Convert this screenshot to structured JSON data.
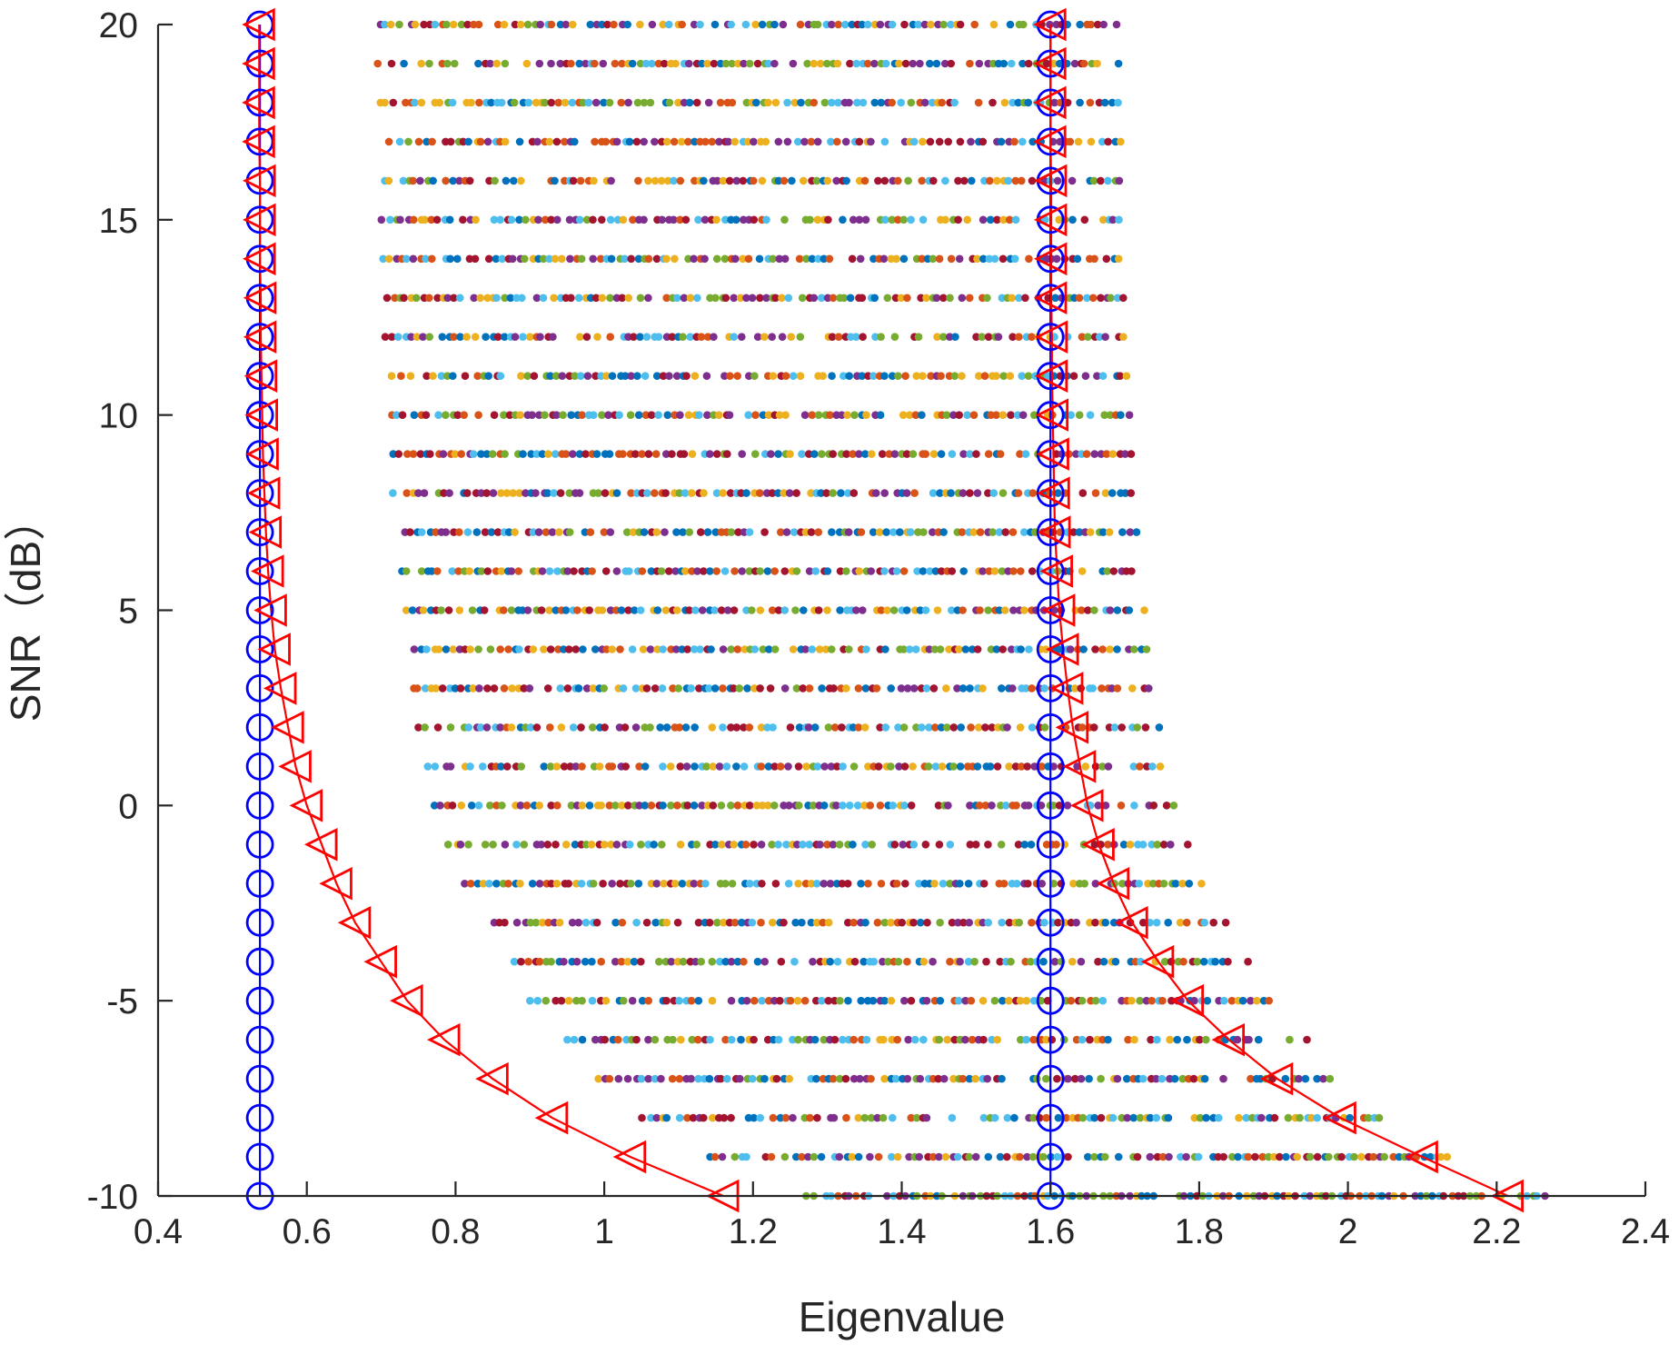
{
  "chart_data": {
    "type": "scatter",
    "title": "",
    "xlabel": "Eigenvalue",
    "ylabel": "SNR（dB）",
    "xlim": [
      0.4,
      2.4
    ],
    "ylim": [
      -10,
      20
    ],
    "x_ticks": [
      "0.4",
      "0.6",
      "0.8",
      "1",
      "1.2",
      "1.4",
      "1.6",
      "1.8",
      "2",
      "2.2",
      "2.4"
    ],
    "y_ticks": [
      "-10",
      "-5",
      "0",
      "5",
      "10",
      "15",
      "20"
    ],
    "grid": false,
    "legend": "none",
    "snr": [
      -10,
      -9,
      -8,
      -7,
      -6,
      -5,
      -4,
      -3,
      -2,
      -1,
      0,
      1,
      2,
      3,
      4,
      5,
      6,
      7,
      8,
      9,
      10,
      11,
      12,
      13,
      14,
      15,
      16,
      17,
      18,
      19,
      20
    ],
    "series": [
      {
        "label_marker": "circle",
        "color": "#0000ff",
        "points": [
          {
            "y": -10,
            "x": [
              0.537,
              1.6
            ]
          },
          {
            "y": -9,
            "x": [
              0.537,
              1.6
            ]
          },
          {
            "y": -8,
            "x": [
              0.537,
              1.6
            ]
          },
          {
            "y": -7,
            "x": [
              0.537,
              1.6
            ]
          },
          {
            "y": -6,
            "x": [
              0.537,
              1.6
            ]
          },
          {
            "y": -5,
            "x": [
              0.537,
              1.6
            ]
          },
          {
            "y": -4,
            "x": [
              0.537,
              1.6
            ]
          },
          {
            "y": -3,
            "x": [
              0.537,
              1.6
            ]
          },
          {
            "y": -2,
            "x": [
              0.537,
              1.6
            ]
          },
          {
            "y": -1,
            "x": [
              0.537,
              1.6
            ]
          },
          {
            "y": 0,
            "x": [
              0.537,
              1.6
            ]
          },
          {
            "y": 1,
            "x": [
              0.537,
              1.6
            ]
          },
          {
            "y": 2,
            "x": [
              0.537,
              1.6
            ]
          },
          {
            "y": 3,
            "x": [
              0.537,
              1.6
            ]
          },
          {
            "y": 4,
            "x": [
              0.537,
              1.6
            ]
          },
          {
            "y": 5,
            "x": [
              0.537,
              1.6
            ]
          },
          {
            "y": 6,
            "x": [
              0.537,
              1.6
            ]
          },
          {
            "y": 7,
            "x": [
              0.537,
              1.6
            ]
          },
          {
            "y": 8,
            "x": [
              0.537,
              1.6
            ]
          },
          {
            "y": 9,
            "x": [
              0.537,
              1.6
            ]
          },
          {
            "y": 10,
            "x": [
              0.537,
              1.6
            ]
          },
          {
            "y": 11,
            "x": [
              0.537,
              1.6
            ]
          },
          {
            "y": 12,
            "x": [
              0.537,
              1.6
            ]
          },
          {
            "y": 13,
            "x": [
              0.537,
              1.6
            ]
          },
          {
            "y": 14,
            "x": [
              0.537,
              1.6
            ]
          },
          {
            "y": 15,
            "x": [
              0.537,
              1.6
            ]
          },
          {
            "y": 16,
            "x": [
              0.537,
              1.6
            ]
          },
          {
            "y": 17,
            "x": [
              0.537,
              1.6
            ]
          },
          {
            "y": 18,
            "x": [
              0.537,
              1.6
            ]
          },
          {
            "y": 19,
            "x": [
              0.537,
              1.6
            ]
          },
          {
            "y": 20,
            "x": [
              0.537,
              1.6
            ]
          }
        ]
      },
      {
        "label_marker": "triangle-left",
        "color": "#ff0000",
        "lower_bound_x": [
          1.16,
          1.035,
          0.93,
          0.85,
          0.785,
          0.735,
          0.7,
          0.665,
          0.64,
          0.62,
          0.6,
          0.585,
          0.575,
          0.565,
          0.557,
          0.552,
          0.548,
          0.545,
          0.543,
          0.541,
          0.54,
          0.539,
          0.538,
          0.538,
          0.537,
          0.537,
          0.537,
          0.536,
          0.536,
          0.536,
          0.536
        ],
        "upper_bound_x": [
          2.215,
          2.1,
          1.99,
          1.905,
          1.84,
          1.785,
          1.745,
          1.71,
          1.685,
          1.665,
          1.65,
          1.64,
          1.63,
          1.623,
          1.617,
          1.612,
          1.609,
          1.606,
          1.605,
          1.604,
          1.603,
          1.602,
          1.602,
          1.601,
          1.601,
          1.601,
          1.601,
          1.6,
          1.6,
          1.6,
          1.6
        ]
      },
      {
        "label_marker": "dot",
        "colors": [
          "#0072bd",
          "#d95319",
          "#edb120",
          "#7e2f8e",
          "#77ac30",
          "#4dbeee",
          "#a2142f"
        ],
        "x_min": [
          1.27,
          1.14,
          1.05,
          0.99,
          0.95,
          0.9,
          0.87,
          0.84,
          0.81,
          0.79,
          0.77,
          0.76,
          0.75,
          0.74,
          0.735,
          0.73,
          0.725,
          0.72,
          0.715,
          0.715,
          0.71,
          0.71,
          0.705,
          0.705,
          0.7,
          0.7,
          0.7,
          0.7,
          0.695,
          0.695,
          0.695
        ],
        "x_max": [
          2.27,
          2.14,
          2.05,
          1.99,
          1.95,
          1.9,
          1.87,
          1.84,
          1.81,
          1.79,
          1.77,
          1.76,
          1.75,
          1.74,
          1.735,
          1.73,
          1.725,
          1.72,
          1.715,
          1.715,
          1.71,
          1.71,
          1.705,
          1.705,
          1.7,
          1.7,
          1.7,
          1.7,
          1.695,
          1.695,
          1.695
        ]
      }
    ]
  }
}
